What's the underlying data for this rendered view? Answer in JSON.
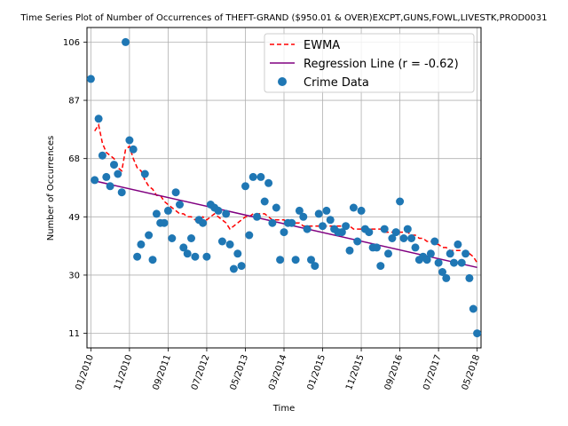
{
  "chart_data": {
    "type": "scatter",
    "title": "Time Series Plot of Number of Occurrences of THEFT-GRAND ($950.01 & OVER)EXCPT,GUNS,FOWL,LIVESTK,PROD0031",
    "xlabel": "Time",
    "ylabel": "Number of Occurrences",
    "x_ticks": [
      "01/2010",
      "11/2010",
      "09/2011",
      "07/2012",
      "05/2013",
      "03/2014",
      "01/2015",
      "11/2015",
      "09/2016",
      "07/2017",
      "05/2018"
    ],
    "y_ticks": [
      11,
      30,
      49,
      68,
      87,
      106
    ],
    "ylim": [
      6.25,
      110.75
    ],
    "x_range": [
      "2009-12",
      "2018-06"
    ],
    "grid": true,
    "legend_position": "top-right",
    "series": [
      {
        "name": "EWMA",
        "kind": "line",
        "style": "dashed",
        "color": "#ff0000",
        "x": [
          "2010-01",
          "2010-02",
          "2010-03",
          "2010-04",
          "2010-05",
          "2010-06",
          "2010-07",
          "2010-08",
          "2010-09",
          "2010-10",
          "2010-11",
          "2010-12",
          "2011-01",
          "2011-02",
          "2011-03",
          "2011-04",
          "2011-05",
          "2011-06",
          "2011-07",
          "2011-08",
          "2011-09",
          "2011-10",
          "2011-11",
          "2011-12",
          "2012-01",
          "2012-02",
          "2012-03",
          "2012-04",
          "2012-05",
          "2012-06",
          "2012-07",
          "2012-08",
          "2012-09",
          "2012-10",
          "2012-11",
          "2012-12",
          "2013-01",
          "2013-02",
          "2013-03",
          "2013-04",
          "2013-05",
          "2013-06",
          "2013-07",
          "2013-08",
          "2013-09",
          "2013-10",
          "2013-11",
          "2013-12",
          "2014-01",
          "2014-02",
          "2014-03",
          "2014-04",
          "2014-05",
          "2014-06",
          "2014-07",
          "2014-08",
          "2014-09",
          "2014-10",
          "2014-11",
          "2014-12",
          "2015-01",
          "2015-02",
          "2015-03",
          "2015-04",
          "2015-05",
          "2015-06",
          "2015-07",
          "2015-08",
          "2015-09",
          "2015-10",
          "2015-11",
          "2015-12",
          "2016-01",
          "2016-02",
          "2016-03",
          "2016-04",
          "2016-05",
          "2016-06",
          "2016-07",
          "2016-08",
          "2016-09",
          "2016-10",
          "2016-11",
          "2016-12",
          "2017-01",
          "2017-02",
          "2017-03",
          "2017-04",
          "2017-05",
          "2017-06",
          "2017-07",
          "2017-08",
          "2017-09",
          "2017-10",
          "2017-11",
          "2017-12",
          "2018-01",
          "2018-02",
          "2018-03",
          "2018-04",
          "2018-05"
        ],
        "values": [
          null,
          77,
          79,
          73,
          70,
          69,
          68,
          65,
          64,
          71,
          72,
          68,
          65,
          64,
          61,
          59,
          58,
          56,
          56,
          54,
          53,
          52,
          51,
          50,
          50,
          49,
          49,
          48,
          48,
          49,
          48,
          49,
          50,
          49,
          48,
          47,
          45,
          46,
          47,
          48,
          49,
          49,
          50,
          50,
          50,
          50,
          49,
          48,
          48,
          48,
          48,
          47,
          47,
          47,
          47,
          46,
          46,
          46,
          46,
          46,
          46,
          46,
          46,
          46,
          46,
          46,
          46,
          46,
          45,
          45,
          45,
          45,
          45,
          45,
          45,
          45,
          44,
          44,
          44,
          44,
          44,
          44,
          44,
          43,
          43,
          42,
          42,
          41,
          41,
          40,
          40,
          39,
          39,
          38,
          38,
          38,
          38,
          37,
          37,
          36,
          34
        ]
      },
      {
        "name": "Regression Line (r = -0.62)",
        "kind": "line",
        "style": "solid",
        "color": "#800080",
        "x": [
          "2010-01",
          "2018-05"
        ],
        "values": [
          61,
          32.5
        ]
      },
      {
        "name": "Crime Data",
        "kind": "scatter",
        "color": "#1f77b4",
        "x": [
          "2010-01",
          "2010-02",
          "2010-03",
          "2010-04",
          "2010-05",
          "2010-06",
          "2010-07",
          "2010-08",
          "2010-09",
          "2010-10",
          "2010-11",
          "2010-12",
          "2011-01",
          "2011-02",
          "2011-03",
          "2011-04",
          "2011-05",
          "2011-06",
          "2011-07",
          "2011-08",
          "2011-09",
          "2011-10",
          "2011-11",
          "2011-12",
          "2012-01",
          "2012-02",
          "2012-03",
          "2012-04",
          "2012-05",
          "2012-06",
          "2012-07",
          "2012-08",
          "2012-09",
          "2012-10",
          "2012-11",
          "2012-12",
          "2013-01",
          "2013-02",
          "2013-03",
          "2013-04",
          "2013-05",
          "2013-06",
          "2013-07",
          "2013-08",
          "2013-09",
          "2013-10",
          "2013-11",
          "2013-12",
          "2014-01",
          "2014-02",
          "2014-03",
          "2014-04",
          "2014-05",
          "2014-06",
          "2014-07",
          "2014-08",
          "2014-09",
          "2014-10",
          "2014-11",
          "2014-12",
          "2015-01",
          "2015-02",
          "2015-03",
          "2015-04",
          "2015-05",
          "2015-06",
          "2015-07",
          "2015-08",
          "2015-09",
          "2015-10",
          "2015-11",
          "2015-12",
          "2016-01",
          "2016-02",
          "2016-03",
          "2016-04",
          "2016-05",
          "2016-06",
          "2016-07",
          "2016-08",
          "2016-09",
          "2016-10",
          "2016-11",
          "2016-12",
          "2017-01",
          "2017-02",
          "2017-03",
          "2017-04",
          "2017-05",
          "2017-06",
          "2017-07",
          "2017-08",
          "2017-09",
          "2017-10",
          "2017-11",
          "2017-12",
          "2018-01",
          "2018-02",
          "2018-03",
          "2018-04",
          "2018-05"
        ],
        "values": [
          94,
          61,
          81,
          69,
          62,
          59,
          66,
          63,
          57,
          106,
          74,
          71,
          36,
          40,
          63,
          43,
          35,
          50,
          47,
          47,
          51,
          42,
          57,
          53,
          39,
          37,
          42,
          36,
          48,
          47,
          36,
          53,
          52,
          51,
          41,
          50,
          40,
          32,
          37,
          33,
          59,
          43,
          62,
          49,
          62,
          54,
          60,
          47,
          52,
          35,
          44,
          47,
          47,
          35,
          51,
          49,
          45,
          35,
          33,
          50,
          46,
          51,
          48,
          45,
          44,
          44,
          46,
          38,
          52,
          41,
          51,
          45,
          44,
          39,
          39,
          33,
          45,
          37,
          42,
          44,
          54,
          42,
          45,
          42,
          39,
          35,
          36,
          35,
          37,
          41,
          34,
          31,
          29,
          37,
          34,
          40,
          34,
          37,
          29,
          19,
          11
        ]
      }
    ]
  }
}
